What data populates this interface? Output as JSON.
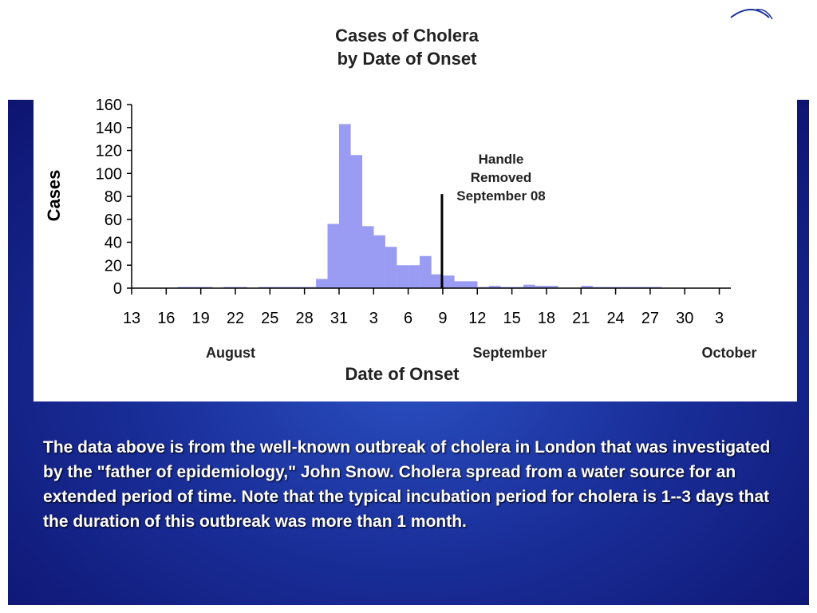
{
  "slide": {
    "caption": "The data above is from the well-known outbreak of cholera in London that was investigated by the \"father of epidemiology,\" John Snow. Cholera spread from a water source for an extended period of time. Note that the typical incubation period for cholera is 1--3 days that the duration of this outbreak was more than 1 month."
  },
  "colors": {
    "bar": "#9a9bf3",
    "background_blue": "#1a2f9a",
    "text": "#000000"
  },
  "chart_data": {
    "type": "bar",
    "title": [
      "Cases of Cholera",
      "by Date of Onset"
    ],
    "xlabel": "Date of Onset",
    "ylabel": "Cases",
    "ylim": [
      0,
      160
    ],
    "yticks": [
      0,
      20,
      40,
      60,
      80,
      100,
      120,
      140,
      160
    ],
    "x_tick_labels": [
      "13",
      "16",
      "19",
      "22",
      "25",
      "28",
      "31",
      "3",
      "6",
      "9",
      "12",
      "15",
      "18",
      "21",
      "24",
      "27",
      "30",
      "3"
    ],
    "month_labels": [
      "August",
      "September",
      "October"
    ],
    "categories": [
      "Aug 13",
      "Aug 14",
      "Aug 15",
      "Aug 16",
      "Aug 17",
      "Aug 18",
      "Aug 19",
      "Aug 20",
      "Aug 21",
      "Aug 22",
      "Aug 23",
      "Aug 24",
      "Aug 25",
      "Aug 26",
      "Aug 27",
      "Aug 28",
      "Aug 29",
      "Aug 30",
      "Aug 31",
      "Sep 1",
      "Sep 2",
      "Sep 3",
      "Sep 4",
      "Sep 5",
      "Sep 6",
      "Sep 7",
      "Sep 8",
      "Sep 9",
      "Sep 10",
      "Sep 11",
      "Sep 12",
      "Sep 13",
      "Sep 14",
      "Sep 15",
      "Sep 16",
      "Sep 17",
      "Sep 18",
      "Sep 19",
      "Sep 20",
      "Sep 21",
      "Sep 22",
      "Sep 23",
      "Sep 24",
      "Sep 25",
      "Sep 26",
      "Sep 27",
      "Sep 28",
      "Sep 29",
      "Sep 30",
      "Oct 1",
      "Oct 2",
      "Oct 3"
    ],
    "values": [
      0,
      0,
      0,
      0,
      1,
      1,
      1,
      0,
      1,
      1,
      0,
      1,
      1,
      1,
      1,
      1,
      8,
      56,
      143,
      116,
      54,
      46,
      36,
      20,
      20,
      28,
      12,
      11,
      6,
      6,
      1,
      2,
      1,
      1,
      3,
      2,
      2,
      0,
      0,
      2,
      1,
      1,
      1,
      1,
      1,
      1,
      0,
      0,
      0,
      0,
      0,
      0
    ],
    "annotation": {
      "text": [
        "Handle",
        "Removed",
        "September 08"
      ],
      "x": "Sep 8",
      "y": 82
    }
  }
}
